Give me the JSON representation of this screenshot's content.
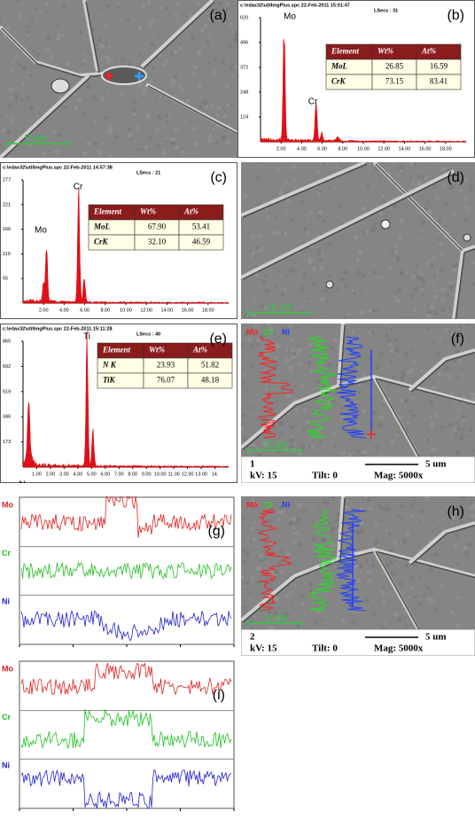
{
  "panels": {
    "a": {
      "label": "(a)",
      "scale": "5 um"
    },
    "b": {
      "label": "(b)",
      "header": "c:\\edax32\\utilImgPlus.spc 22-Feb-2011 15:01:47",
      "lsecs": "LSecs : 31",
      "peaks": [
        "Mo",
        "Cr"
      ],
      "yticks": [
        "620",
        "496",
        "372",
        "248",
        "124"
      ],
      "xticks": [
        "2.00",
        "4.00",
        "6.00",
        "8.00",
        "10.00",
        "12.00",
        "14.00",
        "16.00",
        "18.00"
      ],
      "table": {
        "columns": [
          "Element",
          "Wt%",
          "At%"
        ],
        "rows": [
          [
            "MoL",
            "26.85",
            "16.59"
          ],
          [
            "CrK",
            "73.15",
            "83.41"
          ]
        ]
      }
    },
    "c": {
      "label": "(c)",
      "header": "c:\\edax32\\utilImgPlus.spc 22-Feb-2011 14:57:38",
      "lsecs": "LSecs : 21",
      "peaks": [
        "Mo",
        "Cr"
      ],
      "yticks": [
        "277",
        "221",
        "166",
        "110",
        "55"
      ],
      "xticks": [
        "2.00",
        "4.00",
        "6.00",
        "8.00",
        "10.00",
        "12.00",
        "14.00",
        "16.00",
        "18.00"
      ],
      "table": {
        "columns": [
          "Element",
          "Wt%",
          "At%"
        ],
        "rows": [
          [
            "MoL",
            "67.90",
            "53.41"
          ],
          [
            "CrK",
            "32.10",
            "46.59"
          ]
        ]
      }
    },
    "d": {
      "label": "(d)",
      "scale": "10 um"
    },
    "e": {
      "label": "(e)",
      "header": "c:\\edax32\\utilImgPlus.spc 22-Feb-2011 15:11:28",
      "lsecs": "LSecs : 40",
      "peaks": [
        "N",
        "Ti"
      ],
      "yticks": [
        "865",
        "692",
        "519",
        "346",
        "173"
      ],
      "xticks": [
        "1.00",
        "2.00",
        "3.00",
        "4.00",
        "5.00",
        "6.00",
        "7.00",
        "8.00",
        "9.00",
        "10.00",
        "11.00",
        "12.00",
        "13.00",
        "14."
      ],
      "table": {
        "columns": [
          "Element",
          "Wt%",
          "At%"
        ],
        "rows": [
          [
            "N K",
            "23.93",
            "51.82"
          ],
          [
            "TiK",
            "76.07",
            "48.18"
          ]
        ]
      }
    },
    "f": {
      "label": "(f)",
      "legend": [
        "Mo",
        "Cr",
        "Ni"
      ],
      "scale": "5 um",
      "info": {
        "number": "1",
        "bar": "5 um",
        "kv": "kV: 15",
        "tilt": "Tilt: 0",
        "mag": "Mag: 5000x"
      }
    },
    "g": {
      "label": "(g)",
      "profiles": [
        "Mo",
        "Cr",
        "Ni"
      ]
    },
    "h": {
      "label": "(h)",
      "legend": [
        "Mo",
        "Cr",
        "Ni"
      ],
      "scale": "5 um",
      "info": {
        "number": "2",
        "bar": "5 um",
        "kv": "kV: 15",
        "tilt": "Tilt: 0",
        "mag": "Mag: 5000x"
      }
    },
    "i": {
      "label": "(i)",
      "profiles": [
        "Mo",
        "Cr",
        "Ni"
      ]
    }
  }
}
